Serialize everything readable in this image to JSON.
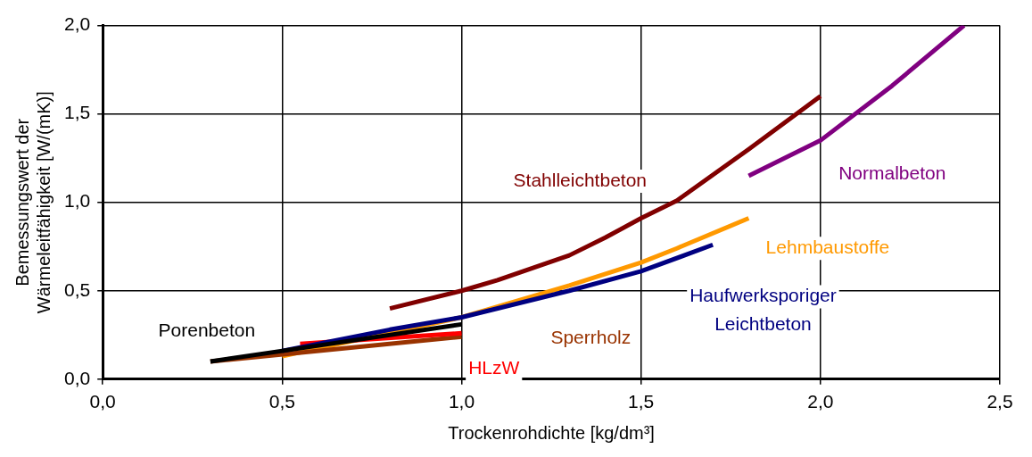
{
  "chart_data": {
    "type": "line",
    "xlabel": "Trockenrohdichte [kg/dm³]",
    "ylabel": "Bemessungswert der Wärmeleitfähigkeit [W/(mK)]",
    "xlim": [
      0,
      2.5
    ],
    "ylim": [
      0,
      2
    ],
    "xticks": [
      {
        "value": 0,
        "label": "0,0"
      },
      {
        "value": 0.5,
        "label": "0,5"
      },
      {
        "value": 1,
        "label": "1,0"
      },
      {
        "value": 1.5,
        "label": "1,5"
      },
      {
        "value": 2,
        "label": "2,0"
      },
      {
        "value": 2.5,
        "label": "2,5"
      }
    ],
    "yticks": [
      {
        "value": 0,
        "label": "0,0"
      },
      {
        "value": 0.5,
        "label": "0,5"
      },
      {
        "value": 1,
        "label": "1,0"
      },
      {
        "value": 1.5,
        "label": "1,5"
      },
      {
        "value": 2,
        "label": "2,0"
      }
    ],
    "grid": true,
    "legend": false,
    "marker": "none",
    "line_style": "solid",
    "series": [
      {
        "name": "Porenbeton",
        "color": "#000000",
        "x": [
          0.3,
          0.5,
          1.0
        ],
        "values": [
          0.1,
          0.16,
          0.31
        ]
      },
      {
        "name": "Haufwerksporiger Leichtbeton",
        "color": "#000080",
        "x": [
          0.5,
          0.8,
          1.0,
          1.3,
          1.5,
          1.7
        ],
        "values": [
          0.16,
          0.28,
          0.35,
          0.5,
          0.61,
          0.76
        ]
      },
      {
        "name": "HLzW",
        "color": "#ff0000",
        "x": [
          0.55,
          1.0
        ],
        "values": [
          0.2,
          0.26
        ]
      },
      {
        "name": "Sperrholz",
        "color": "#993300",
        "x": [
          0.3,
          1.0
        ],
        "values": [
          0.1,
          0.24
        ]
      },
      {
        "name": "Lehmbaustoffe",
        "color": "#ff9900",
        "x": [
          0.5,
          1.0,
          1.3,
          1.5,
          1.6,
          1.8
        ],
        "values": [
          0.13,
          0.35,
          0.53,
          0.66,
          0.74,
          0.91
        ]
      },
      {
        "name": "Stahlleichtbeton",
        "color": "#800000",
        "x": [
          0.8,
          1.0,
          1.1,
          1.3,
          1.4,
          1.5,
          1.6,
          1.8,
          2.0
        ],
        "values": [
          0.4,
          0.5,
          0.56,
          0.7,
          0.8,
          0.91,
          1.01,
          1.3,
          1.6
        ]
      },
      {
        "name": "Normalbeton",
        "color": "#800080",
        "x": [
          1.8,
          2.0,
          2.2,
          2.4
        ],
        "values": [
          1.15,
          1.35,
          1.66,
          2.0
        ]
      }
    ]
  }
}
